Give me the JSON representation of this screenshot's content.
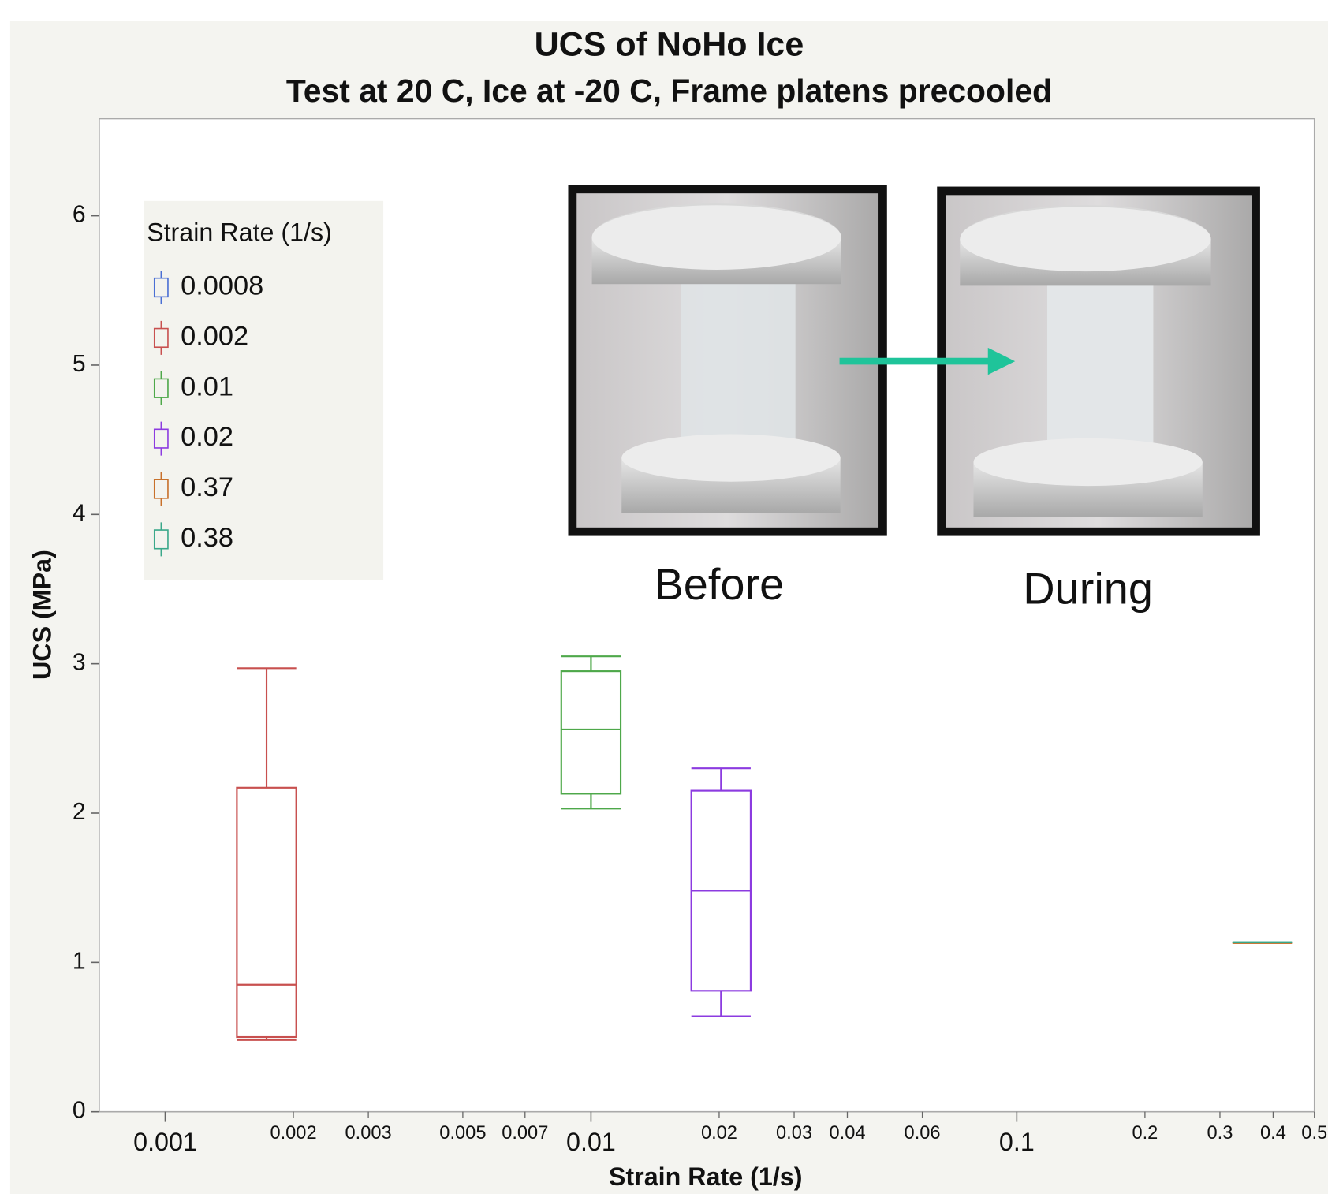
{
  "chart_data": {
    "type": "box",
    "title": "UCS of NoHo Ice",
    "subtitle": "Test at 20 C, Ice at -20 C, Frame platens precooled",
    "x_label": "Strain Rate (1/s)",
    "y_label": "UCS (MPa)",
    "x_scale": "log",
    "xlim": [
      0.0007,
      0.5
    ],
    "ylim": [
      0,
      6.65
    ],
    "xticks": [
      0.001,
      0.01,
      0.1
    ],
    "xticks_minor": [
      0.002,
      0.003,
      0.005,
      0.007,
      0.02,
      0.03,
      0.04,
      0.06,
      0.2,
      0.3,
      0.4,
      0.5
    ],
    "yticks": [
      0,
      1,
      2,
      3,
      4,
      5,
      6
    ],
    "legend_title": "Strain Rate (1/s)",
    "legend_position": "upper left",
    "series": [
      {
        "name": "0.0008",
        "color": "#4a6fd4",
        "x": null,
        "min": null,
        "q1": null,
        "median": null,
        "q3": null,
        "max": null
      },
      {
        "name": "0.002",
        "color": "#c8504f",
        "x": 0.00173,
        "min": 0.48,
        "q1": 0.5,
        "median": 0.85,
        "q3": 2.17,
        "max": 2.97
      },
      {
        "name": "0.01",
        "color": "#4ea84a",
        "x": 0.01,
        "min": 2.03,
        "q1": 2.13,
        "median": 2.56,
        "q3": 2.95,
        "max": 3.05
      },
      {
        "name": "0.02",
        "color": "#8c3be0",
        "x": 0.0202,
        "min": 0.64,
        "q1": 0.81,
        "median": 1.48,
        "q3": 2.15,
        "max": 2.3
      },
      {
        "name": "0.37",
        "color": "#c8702a",
        "x": 0.377,
        "min": 1.13,
        "q1": 1.13,
        "median": 1.13,
        "q3": 1.13,
        "max": 1.13
      },
      {
        "name": "0.38",
        "color": "#3aa88a",
        "x": 0.377,
        "min": 1.135,
        "q1": 1.135,
        "median": 1.135,
        "q3": 1.135,
        "max": 1.135
      }
    ],
    "annotations": [
      "Before",
      "During"
    ]
  }
}
